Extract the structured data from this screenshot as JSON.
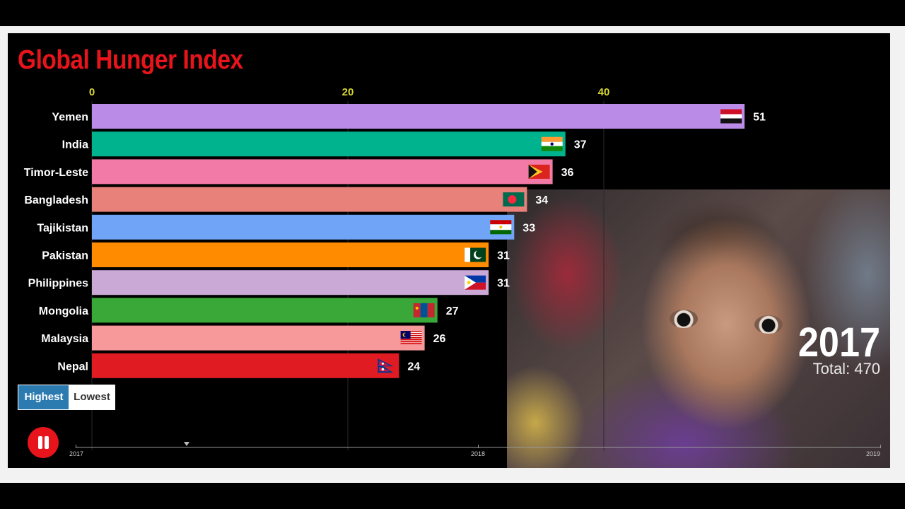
{
  "title": "Global Hunger Index",
  "controls": {
    "highest_label": "Highest",
    "lowest_label": "Lowest",
    "pause_icon": "pause-icon"
  },
  "year_label": "2017",
  "total_label": "Total: 470",
  "timeline": {
    "labels": [
      "2017",
      "2018",
      "2019"
    ],
    "position_fraction": 0.14
  },
  "chart_data": {
    "type": "bar",
    "orientation": "horizontal",
    "title": "Global Hunger Index",
    "axis_ticks": [
      "0",
      "20",
      "40"
    ],
    "xlim": [
      0,
      51
    ],
    "categories": [
      "Yemen",
      "India",
      "Timor-Leste",
      "Bangladesh",
      "Tajikistan",
      "Pakistan",
      "Philippines",
      "Mongolia",
      "Malaysia",
      "Nepal"
    ],
    "values": [
      51,
      37,
      36,
      34,
      33,
      31,
      31,
      27,
      26,
      24
    ],
    "colors": [
      "#ba8ce8",
      "#00b38f",
      "#f27aa6",
      "#e8817a",
      "#6fa4f7",
      "#ff8b00",
      "#cba9d6",
      "#3aa838",
      "#f7999a",
      "#e01b22"
    ],
    "flags": [
      "yemen-flag",
      "india-flag",
      "timor-leste-flag",
      "bangladesh-flag",
      "tajikistan-flag",
      "pakistan-flag",
      "philippines-flag",
      "mongolia-flag",
      "malaysia-flag",
      "nepal-flag"
    ]
  }
}
